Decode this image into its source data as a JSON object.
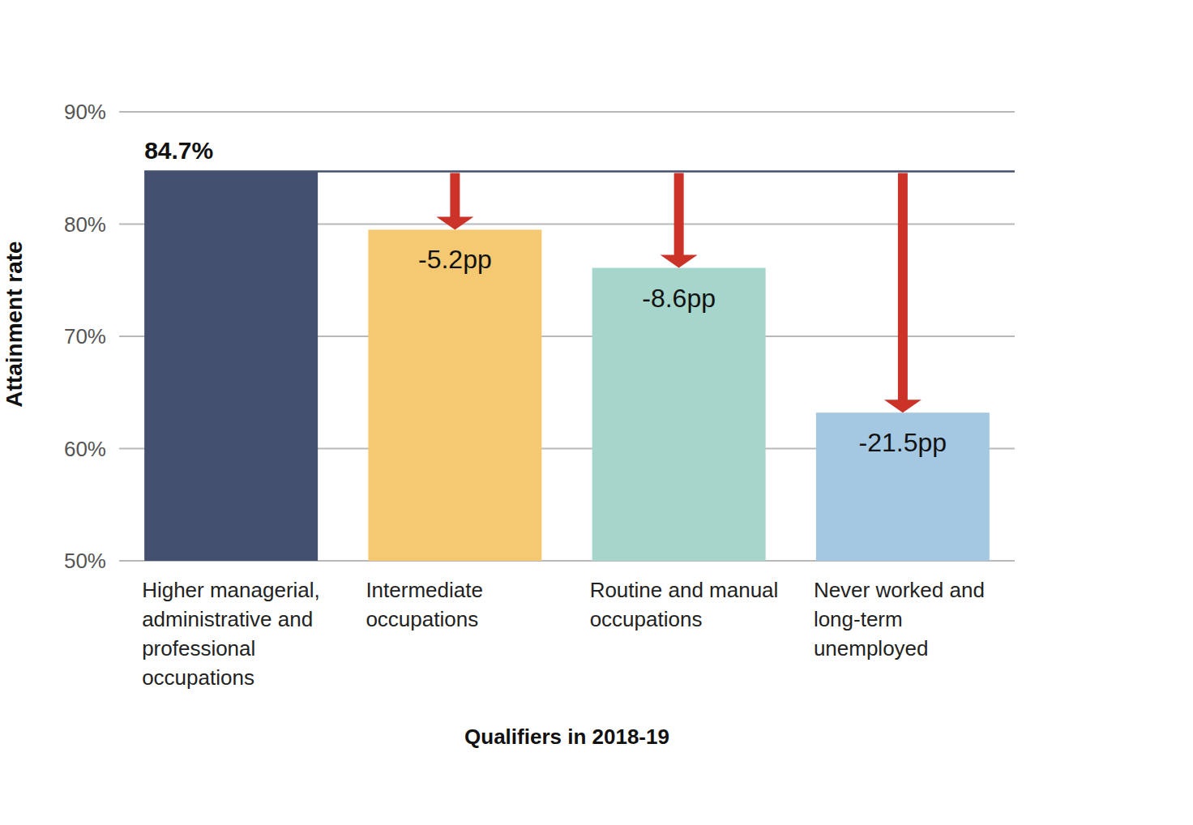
{
  "chart_data": {
    "type": "bar",
    "categories": [
      "Higher managerial, administrative and professional occupations",
      "Intermediate occupations",
      "Routine and manual occupations",
      "Never worked and long-term unemployed"
    ],
    "values": [
      84.7,
      79.5,
      76.1,
      63.2
    ],
    "colors": [
      "#43506f",
      "#f4c971",
      "#a6d6cb",
      "#a4c8e1"
    ],
    "x_label": "Qualifiers in 2018-19",
    "y_label": "Attainment rate",
    "ylim": [
      50,
      90
    ],
    "yticks": [
      {
        "value": 50,
        "label": "50%"
      },
      {
        "value": 60,
        "label": "60%"
      },
      {
        "value": 70,
        "label": "70%"
      },
      {
        "value": 80,
        "label": "80%"
      },
      {
        "value": 90,
        "label": "90%"
      }
    ],
    "grid": true,
    "reference": {
      "value": 84.7,
      "label": "84.7%"
    },
    "differences": {
      "values": [
        null,
        -5.2,
        -8.6,
        -21.5
      ],
      "labels": [
        null,
        "-5.2pp",
        "-8.6pp",
        "-21.5pp"
      ]
    }
  }
}
